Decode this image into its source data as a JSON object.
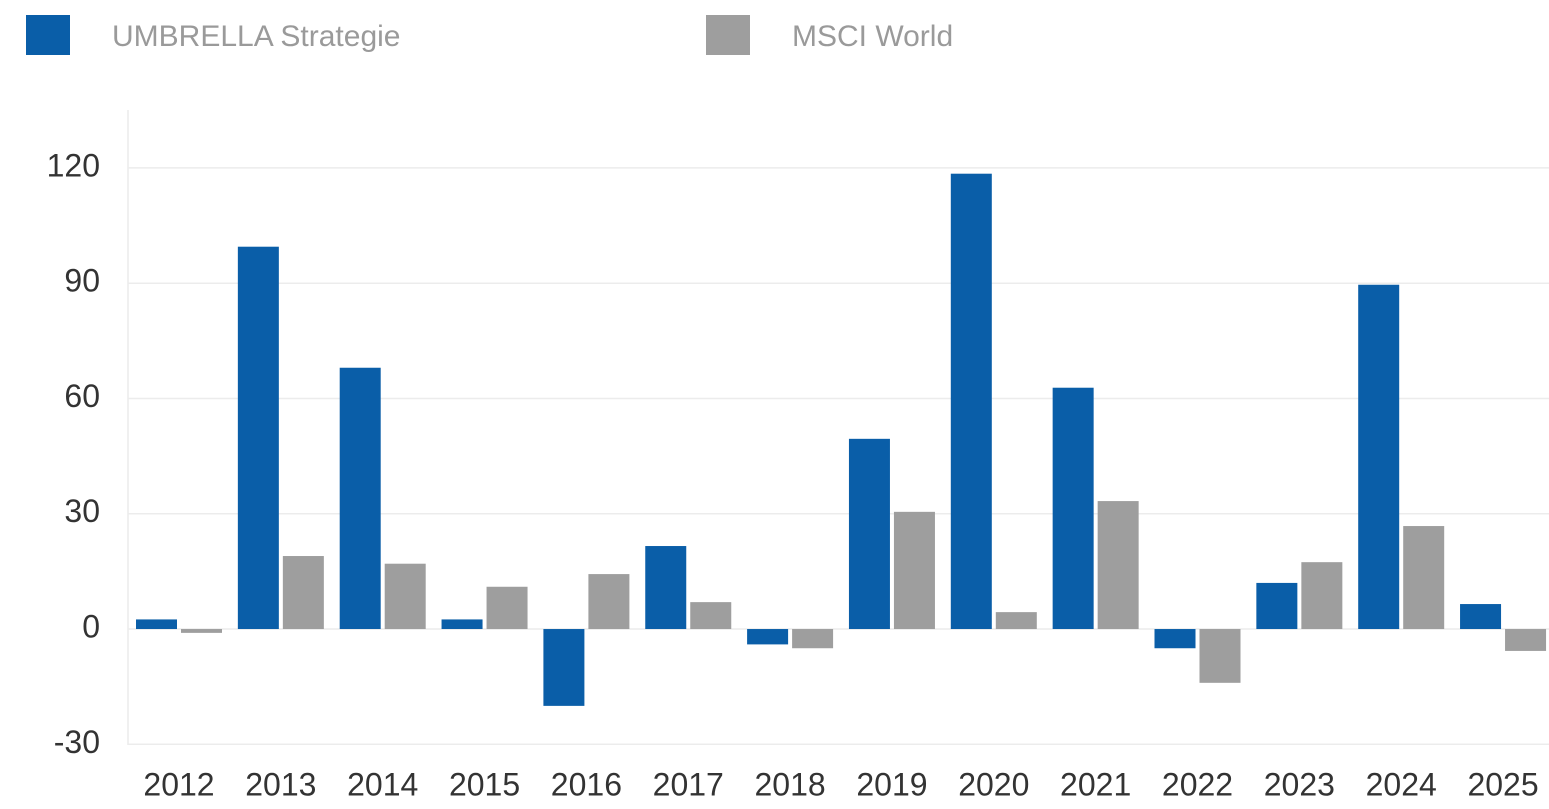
{
  "chart_data": {
    "type": "bar",
    "categories": [
      "2012",
      "2013",
      "2014",
      "2015",
      "2016",
      "2017",
      "2018",
      "2019",
      "2020",
      "2021",
      "2022",
      "2023",
      "2024",
      "2025"
    ],
    "series": [
      {
        "name": "UMBRELLA Strategie",
        "color": "#0a5ea8",
        "values": [
          2.5,
          99.5,
          68,
          2.5,
          -20,
          21.6,
          -4,
          49.5,
          118.5,
          62.8,
          -5,
          12,
          89.6,
          6.5
        ]
      },
      {
        "name": "MSCI World",
        "color": "#9e9e9e",
        "values": [
          -1,
          19,
          17,
          11,
          14.3,
          7,
          -5,
          30.5,
          4.4,
          33.3,
          -14,
          17.4,
          26.8,
          -5.7
        ]
      }
    ],
    "ylim": [
      -30,
      135
    ],
    "yticks": [
      -30,
      0,
      30,
      60,
      90,
      120
    ],
    "grid": true
  }
}
